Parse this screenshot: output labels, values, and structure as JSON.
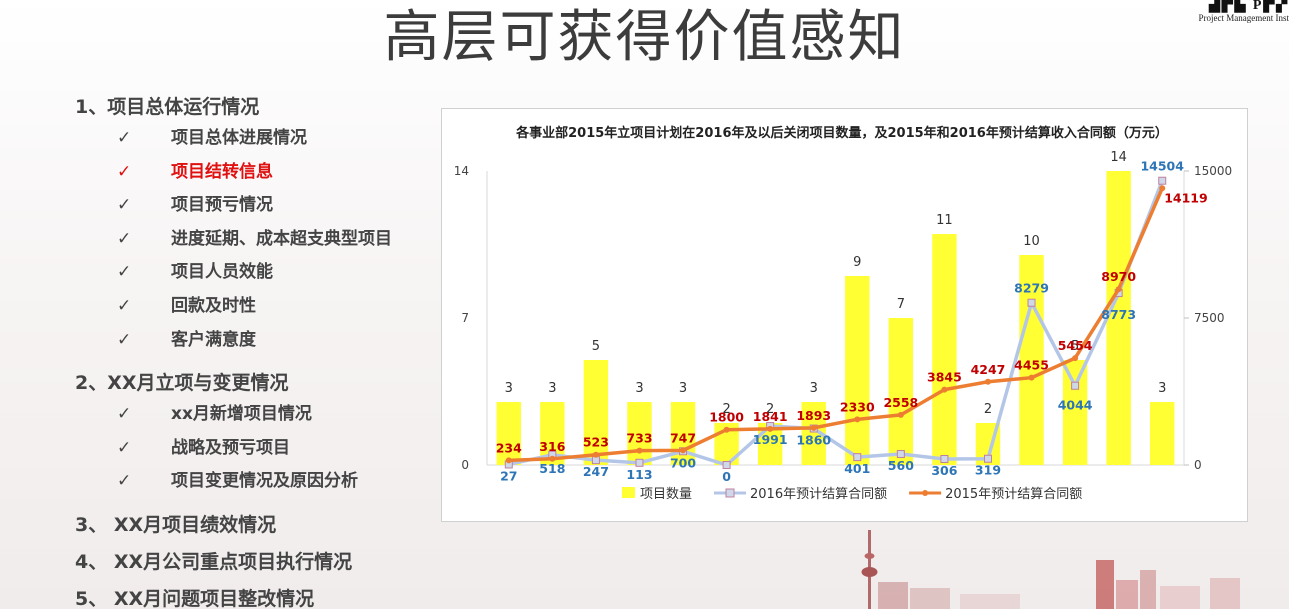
{
  "slide": {
    "title": "高层可获得价值感知",
    "logo_text": "Project Management Inst"
  },
  "outline": {
    "sections": [
      {
        "label": "1、项目总体运行情况",
        "items": [
          {
            "label": "项目总体进展情况",
            "active": false
          },
          {
            "label": "项目结转信息",
            "active": true
          },
          {
            "label": "项目预亏情况",
            "active": false
          },
          {
            "label": "进度延期、成本超支典型项目",
            "active": false
          },
          {
            "label": "项目人员效能",
            "active": false
          },
          {
            "label": "回款及时性",
            "active": false
          },
          {
            "label": "客户满意度",
            "active": false
          }
        ]
      },
      {
        "label": "2、XX月立项与变更情况",
        "items": [
          {
            "label": "xx月新增项目情况",
            "active": false
          },
          {
            "label": "战略及预亏项目",
            "active": false
          },
          {
            "label": "项目变更情况及原因分析",
            "active": false
          }
        ]
      },
      {
        "label": "3、 XX月项目绩效情况",
        "items": []
      },
      {
        "label": "4、 XX月公司重点项目执行情况",
        "items": []
      },
      {
        "label": "5、 XX月问题项目整改情况",
        "items": []
      }
    ],
    "check_glyph": "✓"
  },
  "chart_data": {
    "type": "bar",
    "title": "各事业部2015年立项目计划在2016年及以后关闭项目数量，及2015年和2016年预计结算收入合同额（万元）",
    "categories": [
      "",
      "",
      "",
      "",
      "",
      "",
      "",
      "",
      "",
      "",
      "",
      "",
      "",
      "",
      "",
      ""
    ],
    "series": [
      {
        "name": "项目数量",
        "type": "bar",
        "axis": "left",
        "color": "#ffff33",
        "values": [
          3,
          3,
          5,
          3,
          3,
          2,
          2,
          3,
          9,
          7,
          11,
          2,
          10,
          5,
          14,
          3
        ],
        "labels": [
          "3",
          "3",
          "5",
          "3",
          "3",
          "2",
          "2",
          "3",
          "9",
          "7",
          "11",
          "2",
          "10",
          "5",
          "14",
          "3"
        ]
      },
      {
        "name": "2016年预计结算合同额",
        "type": "line",
        "axis": "right",
        "color": "#b4c6e7",
        "label_color": "#2e75b6",
        "values": [
          27,
          518,
          247,
          113,
          700,
          0,
          1991,
          1860,
          401,
          560,
          306,
          319,
          8279,
          4044,
          8773,
          14504
        ],
        "labels": [
          "27",
          "518",
          "247",
          "113",
          "700",
          "0",
          "1991",
          "1860",
          "401",
          "560",
          "306",
          "319",
          "8279",
          "4044",
          "8773",
          "14504"
        ]
      },
      {
        "name": "2015年预计结算合同额",
        "type": "line",
        "axis": "right",
        "color": "#ed7d31",
        "label_color": "#c00000",
        "values": [
          234,
          316,
          523,
          733,
          747,
          1800,
          1841,
          1893,
          2330,
          2558,
          3845,
          4247,
          4455,
          5454,
          8970,
          14119
        ],
        "labels": [
          "234",
          "316",
          "523",
          "733",
          "747",
          "1800",
          "1841",
          "1893",
          "2330",
          "2558",
          "3845",
          "4247",
          "4455",
          "5454",
          "8970",
          "14119"
        ]
      }
    ],
    "y_left": {
      "min": 0,
      "max": 14,
      "ticks": [
        "0",
        "7",
        "14"
      ]
    },
    "y_right": {
      "min": 0,
      "max": 15000,
      "ticks": [
        "0",
        "7500",
        "15000"
      ]
    },
    "grid": false,
    "legend": "bottom"
  }
}
